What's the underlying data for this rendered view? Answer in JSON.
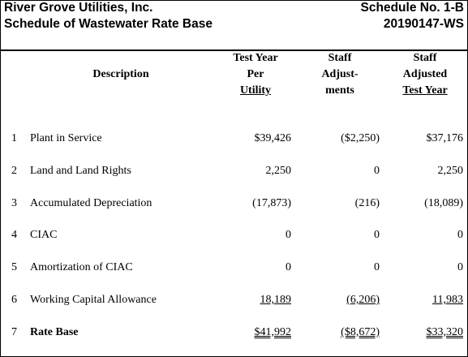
{
  "header": {
    "company": "River Grove Utilities, Inc.",
    "schedule_title": "Schedule of Wastewater Rate Base",
    "schedule_no": "Schedule No. 1-B",
    "docket": "20190147-WS"
  },
  "table": {
    "columns": [
      {
        "lines": [
          "Description"
        ]
      },
      {
        "lines": [
          "Test Year",
          "Per",
          "Utility"
        ]
      },
      {
        "lines": [
          "Staff",
          "Adjust-",
          "ments"
        ]
      },
      {
        "lines": [
          "Staff",
          "Adjusted",
          "Test Year"
        ]
      }
    ],
    "rows": [
      [
        1,
        "Plant in Service",
        "$39,426",
        "($2,250)",
        "$37,176"
      ],
      [
        2,
        "Land and Land Rights",
        "2,250",
        "0",
        "2,250"
      ],
      [
        3,
        "Accumulated Depreciation",
        "(17,873)",
        "(216)",
        "(18,089)"
      ],
      [
        4,
        "CIAC",
        "0",
        "0",
        "0"
      ],
      [
        5,
        "Amortization of CIAC",
        "0",
        "0",
        "0"
      ],
      [
        6,
        "Working Capital Allowance",
        "18,189",
        "(6,206)",
        "11,983"
      ],
      [
        7,
        "Rate Base",
        "$41,992",
        "($8,672)",
        "$33,320"
      ]
    ]
  }
}
